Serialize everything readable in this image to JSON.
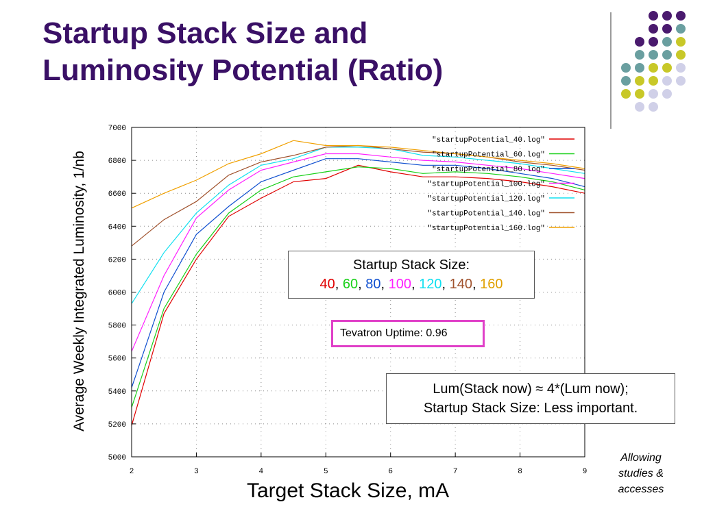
{
  "slide": {
    "title_line1": "Startup Stack Size and",
    "title_line2": "Luminosity Potential (Ratio)",
    "stack_box": {
      "heading": "Startup Stack Size:",
      "values": [
        {
          "text": "40",
          "color": "#e00000"
        },
        {
          "text": "60",
          "color": "#18d018"
        },
        {
          "text": "80",
          "color": "#1050d0"
        },
        {
          "text": "100",
          "color": "#ff20ff"
        },
        {
          "text": "120",
          "color": "#10e0f0"
        },
        {
          "text": "140",
          "color": "#a0522d"
        },
        {
          "text": "160",
          "color": "#e0a000"
        }
      ]
    },
    "uptime_box": "Tevatron Uptime: 0.96",
    "lum_box_line1": "Lum(Stack now) ≈ 4*(Lum now);",
    "lum_box_line2": "Startup Stack Size: Less important.",
    "note_line1": "Allowing",
    "note_line2": "studies &",
    "note_line3": "accesses",
    "decor_dot_colors": [
      "#4a1a6e",
      "#6a9fa0",
      "#c8c828",
      "#d0d0e8"
    ]
  },
  "chart_data": {
    "type": "line",
    "xlabel": "Target Stack Size, mA",
    "ylabel": "Average Weekly Integrated Luminosity, 1/nb",
    "xlim": [
      2,
      9
    ],
    "ylim": [
      5000,
      7000
    ],
    "xticks": [
      "2",
      "3",
      "4",
      "5",
      "6",
      "7",
      "8",
      "9"
    ],
    "yticks": [
      "5000",
      "5200",
      "5400",
      "5600",
      "5800",
      "6000",
      "6200",
      "6400",
      "6600",
      "6800",
      "7000"
    ],
    "grid": true,
    "legend_position": "top-right",
    "x": [
      2,
      2.5,
      3,
      3.5,
      4,
      4.5,
      5,
      5.5,
      6,
      6.5,
      7,
      7.5,
      8,
      8.5,
      9
    ],
    "series": [
      {
        "name": "\"startupPotential_40.log\"",
        "color": "#e00000",
        "values": [
          5190,
          5870,
          6200,
          6460,
          6570,
          6670,
          6690,
          6770,
          6730,
          6700,
          6700,
          6690,
          6670,
          6640,
          6600
        ]
      },
      {
        "name": "\"startupPotential_60.log\"",
        "color": "#18d018",
        "values": [
          5300,
          5900,
          6230,
          6480,
          6620,
          6700,
          6730,
          6760,
          6750,
          6720,
          6730,
          6720,
          6700,
          6670,
          6620
        ]
      },
      {
        "name": "\"startupPotential_80.log\"",
        "color": "#1050d0",
        "values": [
          5420,
          6000,
          6350,
          6520,
          6670,
          6740,
          6810,
          6810,
          6790,
          6770,
          6770,
          6750,
          6720,
          6690,
          6640
        ]
      },
      {
        "name": "\"startupPotential_100.log\"",
        "color": "#ff20ff",
        "values": [
          5640,
          6100,
          6450,
          6620,
          6740,
          6790,
          6840,
          6840,
          6820,
          6800,
          6790,
          6770,
          6750,
          6720,
          6690
        ]
      },
      {
        "name": "\"startupPotential_120.log\"",
        "color": "#10e0f0",
        "values": [
          5930,
          6240,
          6480,
          6650,
          6770,
          6810,
          6880,
          6880,
          6870,
          6830,
          6820,
          6800,
          6780,
          6750,
          6720
        ]
      },
      {
        "name": "\"startupPotential_140.log\"",
        "color": "#a0522d",
        "values": [
          6280,
          6440,
          6550,
          6710,
          6790,
          6830,
          6880,
          6890,
          6870,
          6850,
          6840,
          6820,
          6790,
          6770,
          6740
        ]
      },
      {
        "name": "\"startupPotential_160.log\"",
        "color": "#f0a000",
        "values": [
          6510,
          6600,
          6680,
          6780,
          6840,
          6920,
          6890,
          6890,
          6880,
          6860,
          6840,
          6820,
          6800,
          6780,
          6750
        ]
      }
    ]
  }
}
